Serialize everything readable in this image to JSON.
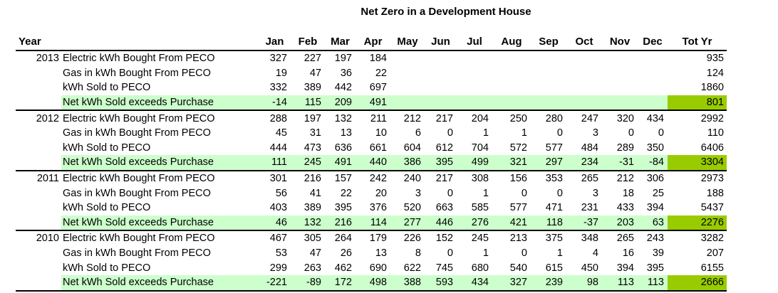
{
  "chart_data": {
    "type": "table",
    "title": "Net Zero in a Development House",
    "columns": [
      "Year",
      "Jan",
      "Feb",
      "Mar",
      "Apr",
      "May",
      "Jun",
      "Jul",
      "Aug",
      "Sep",
      "Oct",
      "Nov",
      "Dec",
      "Tot Yr"
    ],
    "groups": [
      {
        "year": "2013",
        "rows": [
          {
            "label": "Electric kWh Bought From PECO",
            "values": [
              "327",
              "227",
              "197",
              "184",
              "",
              "",
              "",
              "",
              "",
              "",
              "",
              ""
            ],
            "total": "935",
            "net": false
          },
          {
            "label": "Gas in kWh Bought From PECO",
            "values": [
              "19",
              "47",
              "36",
              "22",
              "",
              "",
              "",
              "",
              "",
              "",
              "",
              ""
            ],
            "total": "124",
            "net": false
          },
          {
            "label": "kWh Sold to PECO",
            "values": [
              "332",
              "389",
              "442",
              "697",
              "",
              "",
              "",
              "",
              "",
              "",
              "",
              ""
            ],
            "total": "1860",
            "net": false
          },
          {
            "label": "Net kWh Sold exceeds Purchase",
            "values": [
              "-14",
              "115",
              "209",
              "491",
              "",
              "",
              "",
              "",
              "",
              "",
              "",
              ""
            ],
            "total": "801",
            "net": true
          }
        ]
      },
      {
        "year": "2012",
        "rows": [
          {
            "label": "Electric kWh Bought From PECO",
            "values": [
              "288",
              "197",
              "132",
              "211",
              "212",
              "217",
              "204",
              "250",
              "280",
              "247",
              "320",
              "434"
            ],
            "total": "2992",
            "net": false
          },
          {
            "label": "Gas in kWh Bought From PECO",
            "values": [
              "45",
              "31",
              "13",
              "10",
              "6",
              "0",
              "1",
              "1",
              "0",
              "3",
              "0",
              "0"
            ],
            "total": "110",
            "net": false
          },
          {
            "label": "kWh Sold to PECO",
            "values": [
              "444",
              "473",
              "636",
              "661",
              "604",
              "612",
              "704",
              "572",
              "577",
              "484",
              "289",
              "350"
            ],
            "total": "6406",
            "net": false
          },
          {
            "label": "Net kWh Sold exceeds Purchase",
            "values": [
              "111",
              "245",
              "491",
              "440",
              "386",
              "395",
              "499",
              "321",
              "297",
              "234",
              "-31",
              "-84"
            ],
            "total": "3304",
            "net": true
          }
        ]
      },
      {
        "year": "2011",
        "rows": [
          {
            "label": "Electric kWh Bought From PECO",
            "values": [
              "301",
              "216",
              "157",
              "242",
              "240",
              "217",
              "308",
              "156",
              "353",
              "265",
              "212",
              "306"
            ],
            "total": "2973",
            "net": false
          },
          {
            "label": "Gas in kWh Bought From PECO",
            "values": [
              "56",
              "41",
              "22",
              "20",
              "3",
              "0",
              "1",
              "0",
              "0",
              "3",
              "18",
              "25"
            ],
            "total": "188",
            "net": false
          },
          {
            "label": "kWh Sold to PECO",
            "values": [
              "403",
              "389",
              "395",
              "376",
              "520",
              "663",
              "585",
              "577",
              "471",
              "231",
              "433",
              "394"
            ],
            "total": "5437",
            "net": false
          },
          {
            "label": "Net kWh Sold exceeds Purchase",
            "values": [
              "46",
              "132",
              "216",
              "114",
              "277",
              "446",
              "276",
              "421",
              "118",
              "-37",
              "203",
              "63"
            ],
            "total": "2276",
            "net": true
          }
        ]
      },
      {
        "year": "2010",
        "rows": [
          {
            "label": "Electric kWh Bought From PECO",
            "values": [
              "467",
              "305",
              "264",
              "179",
              "226",
              "152",
              "245",
              "213",
              "375",
              "348",
              "265",
              "243"
            ],
            "total": "3282",
            "net": false
          },
          {
            "label": "Gas in kWh Bought From PECO",
            "values": [
              "53",
              "47",
              "26",
              "13",
              "8",
              "0",
              "1",
              "0",
              "1",
              "4",
              "16",
              "39"
            ],
            "total": "207",
            "net": false
          },
          {
            "label": "kWh Sold to PECO",
            "values": [
              "299",
              "263",
              "462",
              "690",
              "622",
              "745",
              "680",
              "540",
              "615",
              "450",
              "394",
              "395"
            ],
            "total": "6155",
            "net": false
          },
          {
            "label": "Net kWh Sold exceeds Purchase",
            "values": [
              "-221",
              "-89",
              "172",
              "498",
              "388",
              "593",
              "434",
              "327",
              "239",
              "98",
              "113",
              "113"
            ],
            "total": "2666",
            "net": true
          }
        ]
      }
    ],
    "colors": {
      "net_row": "#ccffcc",
      "net_total": "#99cc00"
    }
  }
}
